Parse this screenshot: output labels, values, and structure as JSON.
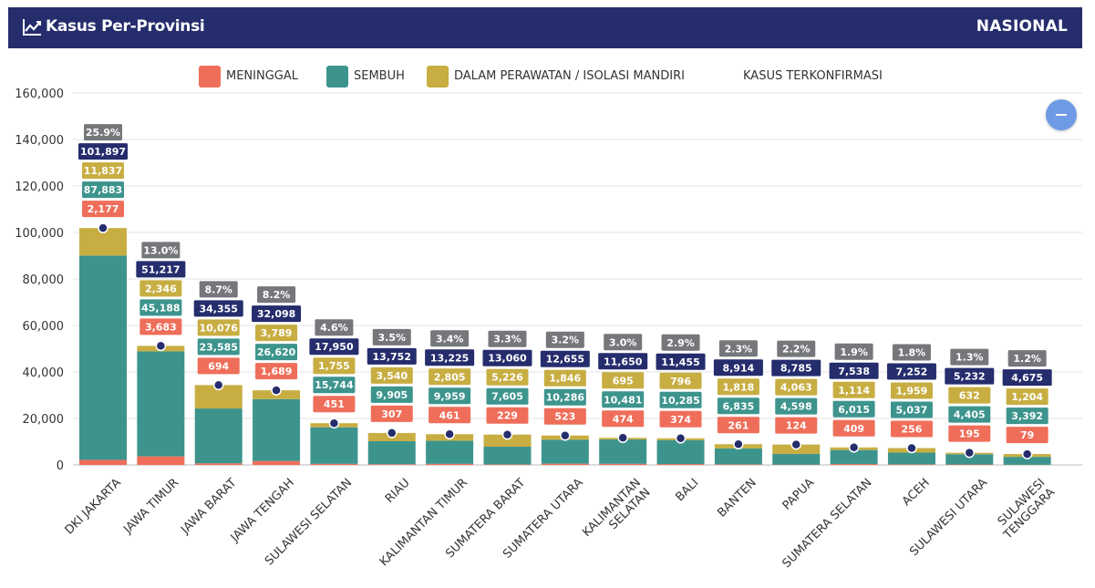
{
  "header": {
    "title": "Kasus Per-Provinsi",
    "scope": "NASIONAL",
    "icon": "line-chart-icon"
  },
  "legend": {
    "items": [
      {
        "key": "meninggal",
        "label": "MENINGGAL",
        "color": "#ef6e5a"
      },
      {
        "key": "sembuh",
        "label": "SEMBUH",
        "color": "#3d948d"
      },
      {
        "key": "perawatan",
        "label": "DALAM PERAWATAN / ISOLASI MANDIRI",
        "color": "#c8ae42"
      },
      {
        "key": "terkonfirmasi",
        "label": "KASUS TERKONFIRMASI",
        "color": ""
      }
    ]
  },
  "colors": {
    "meninggal": "#ef6e5a",
    "sembuh": "#3d948d",
    "perawatan": "#c8ae42",
    "terkonfirmasi": "#252d6d",
    "percent": "#76777b",
    "dot": "#252d6d"
  },
  "controls": {
    "collapse_icon": "minus-icon"
  },
  "chart_data": {
    "type": "bar",
    "stacked": true,
    "ylim": [
      0,
      160000
    ],
    "yticks": [
      "0",
      "20,000",
      "40,000",
      "60,000",
      "80,000",
      "100,000",
      "120,000",
      "140,000",
      "160,000"
    ],
    "grid": true,
    "legend_position": "top",
    "categories": [
      {
        "name": "DKI JAKARTA",
        "lines": [
          "DKI JAKARTA"
        ],
        "meninggal": 2177,
        "sembuh": 87883,
        "perawatan": 11837,
        "terkonfirmasi": 101897,
        "meninggal_label": "2,177",
        "sembuh_label": "87,883",
        "perawatan_label": "11,837",
        "terkonfirmasi_label": "101,897",
        "percent": "25.9%"
      },
      {
        "name": "JAWA TIMUR",
        "lines": [
          "JAWA TIMUR"
        ],
        "meninggal": 3683,
        "sembuh": 45188,
        "perawatan": 2346,
        "terkonfirmasi": 51217,
        "meninggal_label": "3,683",
        "sembuh_label": "45,188",
        "perawatan_label": "2,346",
        "terkonfirmasi_label": "51,217",
        "percent": "13.0%"
      },
      {
        "name": "JAWA BARAT",
        "lines": [
          "JAWA BARAT"
        ],
        "meninggal": 694,
        "sembuh": 23585,
        "perawatan": 10076,
        "terkonfirmasi": 34355,
        "meninggal_label": "694",
        "sembuh_label": "23,585",
        "perawatan_label": "10,076",
        "terkonfirmasi_label": "34,355",
        "percent": "8.7%"
      },
      {
        "name": "JAWA TENGAH",
        "lines": [
          "JAWA TENGAH"
        ],
        "meninggal": 1689,
        "sembuh": 26620,
        "perawatan": 3789,
        "terkonfirmasi": 32098,
        "meninggal_label": "1,689",
        "sembuh_label": "26,620",
        "perawatan_label": "3,789",
        "terkonfirmasi_label": "32,098",
        "percent": "8.2%"
      },
      {
        "name": "SULAWESI SELATAN",
        "lines": [
          "SULAWESI SELATAN"
        ],
        "meninggal": 451,
        "sembuh": 15744,
        "perawatan": 1755,
        "terkonfirmasi": 17950,
        "meninggal_label": "451",
        "sembuh_label": "15,744",
        "perawatan_label": "1,755",
        "terkonfirmasi_label": "17,950",
        "percent": "4.6%"
      },
      {
        "name": "RIAU",
        "lines": [
          "RIAU"
        ],
        "meninggal": 307,
        "sembuh": 9905,
        "perawatan": 3540,
        "terkonfirmasi": 13752,
        "meninggal_label": "307",
        "sembuh_label": "9,905",
        "perawatan_label": "3,540",
        "terkonfirmasi_label": "13,752",
        "percent": "3.5%"
      },
      {
        "name": "KALIMANTAN TIMUR",
        "lines": [
          "KALIMANTAN TIMUR"
        ],
        "meninggal": 461,
        "sembuh": 9959,
        "perawatan": 2805,
        "terkonfirmasi": 13225,
        "meninggal_label": "461",
        "sembuh_label": "9,959",
        "perawatan_label": "2,805",
        "terkonfirmasi_label": "13,225",
        "percent": "3.4%"
      },
      {
        "name": "SUMATERA BARAT",
        "lines": [
          "SUMATERA BARAT"
        ],
        "meninggal": 229,
        "sembuh": 7605,
        "perawatan": 5226,
        "terkonfirmasi": 13060,
        "meninggal_label": "229",
        "sembuh_label": "7,605",
        "perawatan_label": "5,226",
        "terkonfirmasi_label": "13,060",
        "percent": "3.3%"
      },
      {
        "name": "SUMATERA UTARA",
        "lines": [
          "SUMATERA UTARA"
        ],
        "meninggal": 523,
        "sembuh": 10286,
        "perawatan": 1846,
        "terkonfirmasi": 12655,
        "meninggal_label": "523",
        "sembuh_label": "10,286",
        "perawatan_label": "1,846",
        "terkonfirmasi_label": "12,655",
        "percent": "3.2%"
      },
      {
        "name": "KALIMANTAN SELATAN",
        "lines": [
          "KALIMANTAN",
          "SELATAN"
        ],
        "meninggal": 474,
        "sembuh": 10481,
        "perawatan": 695,
        "terkonfirmasi": 11650,
        "meninggal_label": "474",
        "sembuh_label": "10,481",
        "perawatan_label": "695",
        "terkonfirmasi_label": "11,650",
        "percent": "3.0%"
      },
      {
        "name": "BALI",
        "lines": [
          "BALI"
        ],
        "meninggal": 374,
        "sembuh": 10285,
        "perawatan": 796,
        "terkonfirmasi": 11455,
        "meninggal_label": "374",
        "sembuh_label": "10,285",
        "perawatan_label": "796",
        "terkonfirmasi_label": "11,455",
        "percent": "2.9%"
      },
      {
        "name": "BANTEN",
        "lines": [
          "BANTEN"
        ],
        "meninggal": 261,
        "sembuh": 6835,
        "perawatan": 1818,
        "terkonfirmasi": 8914,
        "meninggal_label": "261",
        "sembuh_label": "6,835",
        "perawatan_label": "1,818",
        "terkonfirmasi_label": "8,914",
        "percent": "2.3%"
      },
      {
        "name": "PAPUA",
        "lines": [
          "PAPUA"
        ],
        "meninggal": 124,
        "sembuh": 4598,
        "perawatan": 4063,
        "terkonfirmasi": 8785,
        "meninggal_label": "124",
        "sembuh_label": "4,598",
        "perawatan_label": "4,063",
        "terkonfirmasi_label": "8,785",
        "percent": "2.2%"
      },
      {
        "name": "SUMATERA SELATAN",
        "lines": [
          "SUMATERA SELATAN"
        ],
        "meninggal": 409,
        "sembuh": 6015,
        "perawatan": 1114,
        "terkonfirmasi": 7538,
        "meninggal_label": "409",
        "sembuh_label": "6,015",
        "perawatan_label": "1,114",
        "terkonfirmasi_label": "7,538",
        "percent": "1.9%"
      },
      {
        "name": "ACEH",
        "lines": [
          "ACEH"
        ],
        "meninggal": 256,
        "sembuh": 5037,
        "perawatan": 1959,
        "terkonfirmasi": 7252,
        "meninggal_label": "256",
        "sembuh_label": "5,037",
        "perawatan_label": "1,959",
        "terkonfirmasi_label": "7,252",
        "percent": "1.8%"
      },
      {
        "name": "SULAWESI UTARA",
        "lines": [
          "SULAWESI UTARA"
        ],
        "meninggal": 195,
        "sembuh": 4405,
        "perawatan": 632,
        "terkonfirmasi": 5232,
        "meninggal_label": "195",
        "sembuh_label": "4,405",
        "perawatan_label": "632",
        "terkonfirmasi_label": "5,232",
        "percent": "1.3%"
      },
      {
        "name": "SULAWESI TENGGARA",
        "lines": [
          "SULAWESI",
          "TENGGARA"
        ],
        "meninggal": 79,
        "sembuh": 3392,
        "perawatan": 1204,
        "terkonfirmasi": 4675,
        "meninggal_label": "79",
        "sembuh_label": "3,392",
        "perawatan_label": "1,204",
        "terkonfirmasi_label": "4,675",
        "percent": "1.2%"
      }
    ]
  }
}
